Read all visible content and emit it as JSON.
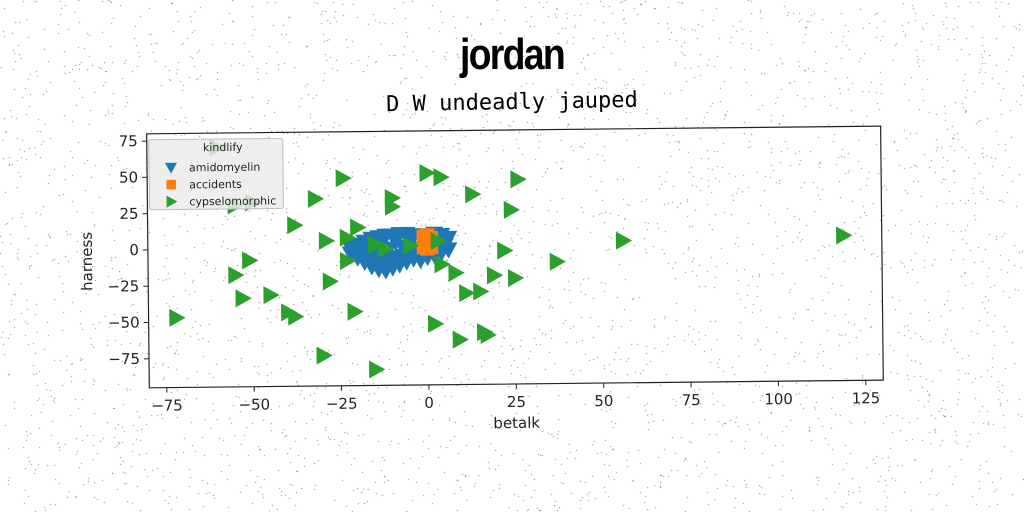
{
  "header": {
    "title": "jordan"
  },
  "chart_data": {
    "type": "scatter",
    "title": "D W undeadly jauped",
    "xlabel": "betalk",
    "ylabel": "harness",
    "xlim": [
      -80,
      130
    ],
    "ylim": [
      -95,
      80
    ],
    "xticks": [
      -75,
      -50,
      -25,
      0,
      25,
      50,
      75,
      100,
      125
    ],
    "yticks": [
      -75,
      -50,
      -25,
      0,
      25,
      50,
      75
    ],
    "grid": false,
    "legend": {
      "title": "kindlify",
      "placement": "top-left"
    },
    "series": [
      {
        "name": "amidomyelin",
        "marker": "triangle-down",
        "color": "#1f77b4",
        "points": [
          [
            -22,
            0
          ],
          [
            -20,
            2
          ],
          [
            -18,
            4
          ],
          [
            -16,
            6
          ],
          [
            -14,
            7
          ],
          [
            -12,
            8
          ],
          [
            -10,
            8
          ],
          [
            -8,
            9
          ],
          [
            -6,
            9
          ],
          [
            -4,
            8
          ],
          [
            -2,
            7
          ],
          [
            0,
            8
          ],
          [
            2,
            9
          ],
          [
            4,
            8
          ],
          [
            6,
            6
          ],
          [
            -22,
            -4
          ],
          [
            -20,
            -7
          ],
          [
            -18,
            -10
          ],
          [
            -16,
            -13
          ],
          [
            -14,
            -15
          ],
          [
            -12,
            -16
          ],
          [
            -10,
            -14
          ],
          [
            -8,
            -12
          ],
          [
            -6,
            -10
          ],
          [
            -4,
            -8
          ],
          [
            -2,
            -9
          ],
          [
            0,
            -7
          ],
          [
            2,
            -6
          ],
          [
            4,
            -4
          ],
          [
            6,
            -2
          ],
          [
            -19,
            -3
          ],
          [
            -15,
            -2
          ],
          [
            -11,
            -1
          ],
          [
            -7,
            0
          ],
          [
            -3,
            -1
          ],
          [
            1,
            0
          ],
          [
            5,
            1
          ],
          [
            -17,
            2
          ],
          [
            -13,
            3
          ],
          [
            -9,
            4
          ],
          [
            -5,
            3
          ],
          [
            -1,
            2
          ],
          [
            3,
            3
          ],
          [
            -17,
            -6
          ],
          [
            -13,
            -8
          ],
          [
            -9,
            -7
          ],
          [
            -5,
            -5
          ],
          [
            -1,
            -4
          ],
          [
            3,
            -2
          ],
          [
            -15,
            -11
          ],
          [
            -11,
            -10
          ],
          [
            -7,
            -6
          ]
        ]
      },
      {
        "name": "accidents",
        "marker": "square",
        "color": "#ff7f0e",
        "points": [
          [
            -1,
            7
          ],
          [
            -1,
            4
          ],
          [
            -1,
            2
          ],
          [
            -1,
            0
          ],
          [
            0,
            -1
          ],
          [
            0,
            1
          ],
          [
            0,
            3
          ],
          [
            0,
            5
          ],
          [
            1,
            6
          ],
          [
            1,
            3
          ],
          [
            1,
            0
          ],
          [
            0,
            8
          ]
        ]
      },
      {
        "name": "cypselomorphic",
        "marker": "triangle-right",
        "color": "#2ca02c",
        "points": [
          [
            -60,
            70
          ],
          [
            -24,
            48
          ],
          [
            0,
            51
          ],
          [
            4,
            48
          ],
          [
            26,
            46
          ],
          [
            -32,
            34
          ],
          [
            -10,
            34
          ],
          [
            -10,
            28
          ],
          [
            13,
            36
          ],
          [
            24,
            25
          ],
          [
            -50,
            32
          ],
          [
            -55,
            30
          ],
          [
            -38,
            16
          ],
          [
            -20,
            14
          ],
          [
            -29,
            5
          ],
          [
            -23,
            7
          ],
          [
            -15,
            2
          ],
          [
            -5,
            1
          ],
          [
            3,
            4
          ],
          [
            -12,
            -1
          ],
          [
            22,
            -3
          ],
          [
            37,
            -11
          ],
          [
            56,
            3
          ],
          [
            119,
            5
          ],
          [
            -51,
            -8
          ],
          [
            -55,
            -18
          ],
          [
            -23,
            -9
          ],
          [
            4,
            -12
          ],
          [
            8,
            -18
          ],
          [
            19,
            -20
          ],
          [
            25,
            -22
          ],
          [
            -28,
            -23
          ],
          [
            15,
            -31
          ],
          [
            11,
            -32
          ],
          [
            -53,
            -34
          ],
          [
            -45,
            -32
          ],
          [
            -40,
            -44
          ],
          [
            -38,
            -47
          ],
          [
            -21,
            -44
          ],
          [
            2,
            -53
          ],
          [
            16,
            -59
          ],
          [
            17,
            -61
          ],
          [
            9,
            -64
          ],
          [
            -30,
            -74
          ],
          [
            -15,
            -84
          ],
          [
            -72,
            -47
          ]
        ]
      }
    ]
  }
}
